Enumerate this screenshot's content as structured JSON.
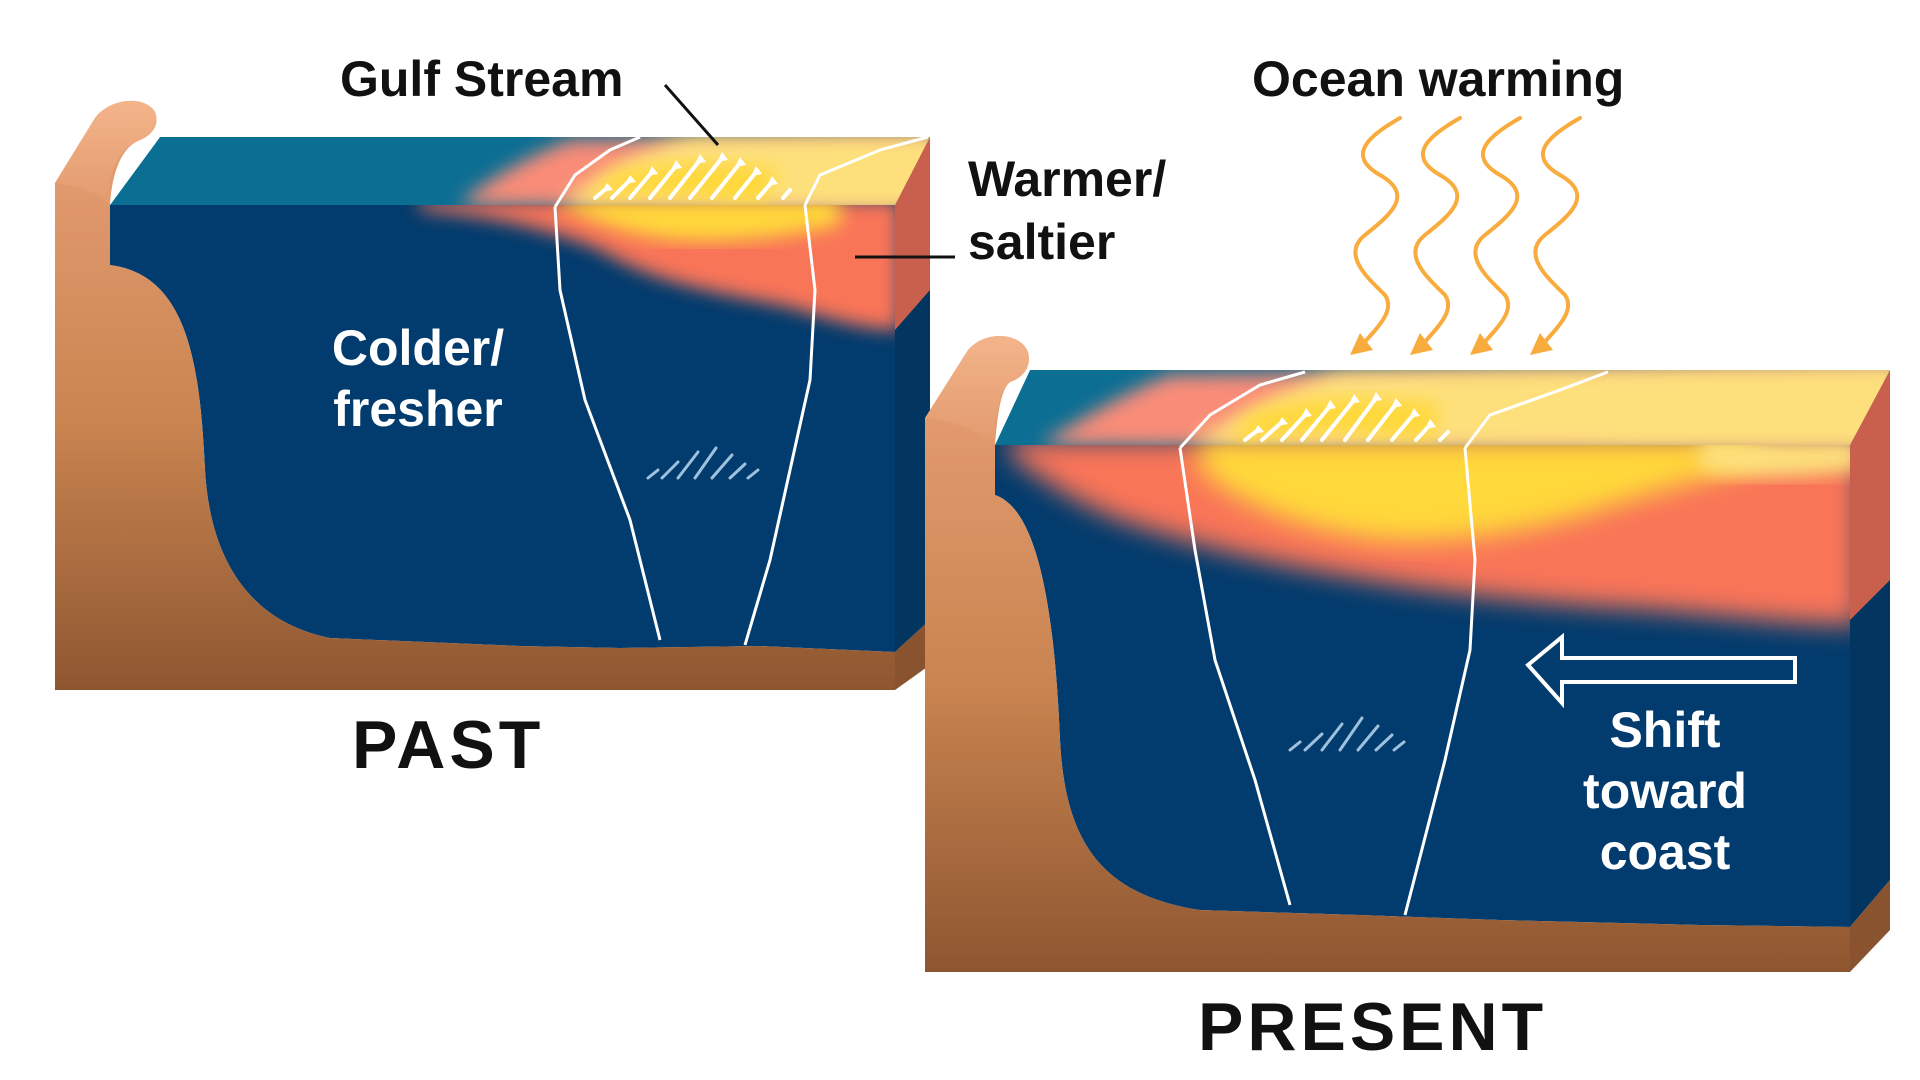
{
  "labels": {
    "gulf_stream": "Gulf Stream",
    "warmer_saltier": [
      "Warmer/",
      "saltier"
    ],
    "colder_fresher": [
      "Colder/",
      "fresher"
    ],
    "ocean_warming": "Ocean warming",
    "shift_toward_coast": [
      "Shift",
      "toward",
      "coast"
    ],
    "past": "PAST",
    "present": "PRESENT"
  },
  "colors": {
    "deep_ocean": "#023b6d",
    "surface_ocean": "#0b6e93",
    "warm_orange": "#f97459",
    "warm_yellow": "#ffd83a",
    "pale_yellow": "#fde07c",
    "land": "#c07a4a",
    "land_light": "#e9a077",
    "warming_arrows": "#f8ac3e"
  },
  "icons": [
    "heat-wave-arrow-icon",
    "shift-left-arrow-icon",
    "current-flow-arrows-icon"
  ]
}
